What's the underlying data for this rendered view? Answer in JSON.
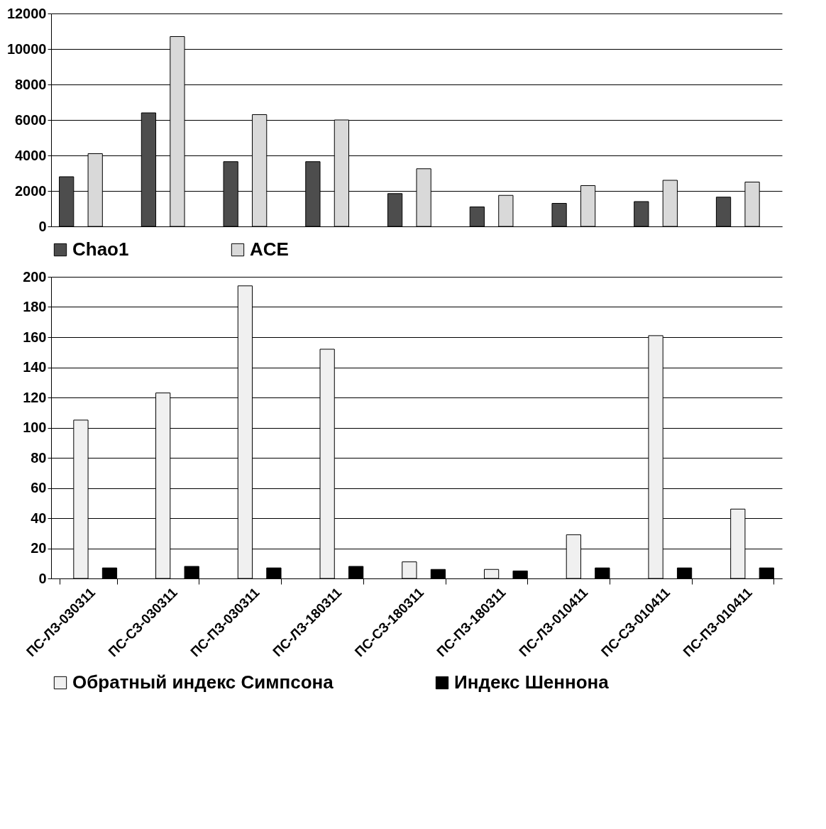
{
  "chart_data": [
    {
      "type": "bar",
      "categories": [
        null,
        null,
        null,
        null,
        null,
        null,
        null,
        null,
        null
      ],
      "tick_labels": "y",
      "ylim": [
        0,
        12000
      ],
      "yticks": [
        0,
        2000,
        4000,
        6000,
        8000,
        10000,
        12000
      ],
      "grid": "y",
      "legend": "bottom",
      "series": [
        {
          "name": "Chao1",
          "color": "#4d4d4d",
          "values": [
            2800,
            6400,
            3650,
            3650,
            1850,
            1100,
            1300,
            1400,
            1650
          ]
        },
        {
          "name": "ACE",
          "color": "#d9d9d9",
          "values": [
            4100,
            10700,
            6300,
            6000,
            3250,
            1750,
            2300,
            2600,
            2500
          ]
        }
      ]
    },
    {
      "type": "bar",
      "categories": [
        "ПС-ЛЗ-030311",
        "ПС-СЗ-030311",
        "ПС-ПЗ-030311",
        "ПС-ЛЗ-180311",
        "ПС-СЗ-180311",
        "ПС-ПЗ-180311",
        "ПС-ЛЗ-010411",
        "ПС-СЗ-010411",
        "ПС-ПЗ-010411"
      ],
      "ylim": [
        0,
        200
      ],
      "yticks": [
        0,
        20,
        40,
        60,
        80,
        100,
        120,
        140,
        160,
        180,
        200
      ],
      "grid": "y",
      "legend": "bottom",
      "series": [
        {
          "name": "Обратный индекс Симпсона",
          "color": "#f0f0f0",
          "values": [
            105,
            123,
            194,
            152,
            11,
            6,
            29,
            161,
            46
          ]
        },
        {
          "name": "Индекс Шеннона",
          "color": "#000000",
          "values": [
            7,
            8,
            7,
            8,
            6,
            5,
            7,
            7,
            7
          ]
        }
      ]
    }
  ]
}
